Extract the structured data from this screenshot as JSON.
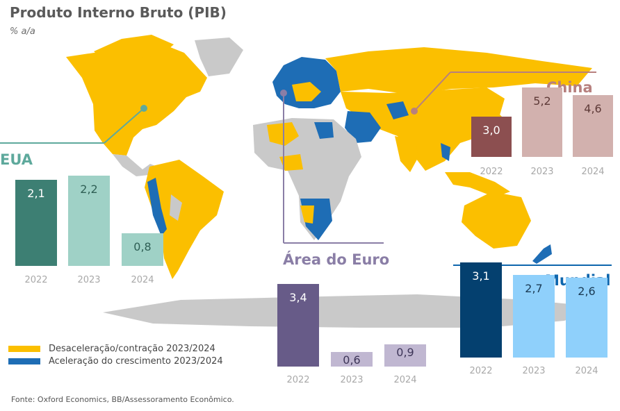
{
  "title": "Produto Interno Bruto (PIB)",
  "subtitle": "% a/a",
  "source": "Fonte: Oxford Economics, BB/Assessoramento Econômico.",
  "legend": [
    {
      "label": "Desaceleração/contração 2023/2024",
      "color": "#fbbf00"
    },
    {
      "label": "Aceleração do crescimento 2023/2024",
      "color": "#1e6db5"
    }
  ],
  "chart_data": [
    {
      "type": "bar",
      "title": "EUA",
      "categories": [
        "2022",
        "2023",
        "2024"
      ],
      "values": [
        2.1,
        2.2,
        0.8
      ],
      "labels": [
        "2,1",
        "2,2",
        "0,8"
      ],
      "ylim": [
        0,
        2.4
      ],
      "colors": [
        "#3d7f73",
        "#9fd1c6",
        "#9fd1c6"
      ],
      "label_color": "#5ea99c"
    },
    {
      "type": "bar",
      "title": "China",
      "categories": [
        "2022",
        "2023",
        "2024"
      ],
      "values": [
        3.0,
        5.2,
        4.6
      ],
      "labels": [
        "3,0",
        "5,2",
        "4,6"
      ],
      "ylim": [
        0,
        5.6
      ],
      "colors": [
        "#8c4f50",
        "#d2b1ae",
        "#d2b1ae"
      ],
      "label_color": "#b7807e"
    },
    {
      "type": "bar",
      "title": "Área do Euro",
      "categories": [
        "2022",
        "2023",
        "2024"
      ],
      "values": [
        3.4,
        0.6,
        0.9
      ],
      "labels": [
        "3,4",
        "0,6",
        "0,9"
      ],
      "ylim": [
        0,
        3.6
      ],
      "colors": [
        "#675b88",
        "#c0b7d1",
        "#c0b7d1"
      ],
      "label_color": "#8a7ea6"
    },
    {
      "type": "bar",
      "title": "Mundial",
      "categories": [
        "2022",
        "2023",
        "2024"
      ],
      "values": [
        3.1,
        2.7,
        2.6
      ],
      "labels": [
        "3,1",
        "2,7",
        "2,6"
      ],
      "ylim": [
        0,
        3.4
      ],
      "colors": [
        "#04406f",
        "#8fd0fb",
        "#8fd0fb"
      ],
      "label_color": "#0e66ad"
    }
  ]
}
